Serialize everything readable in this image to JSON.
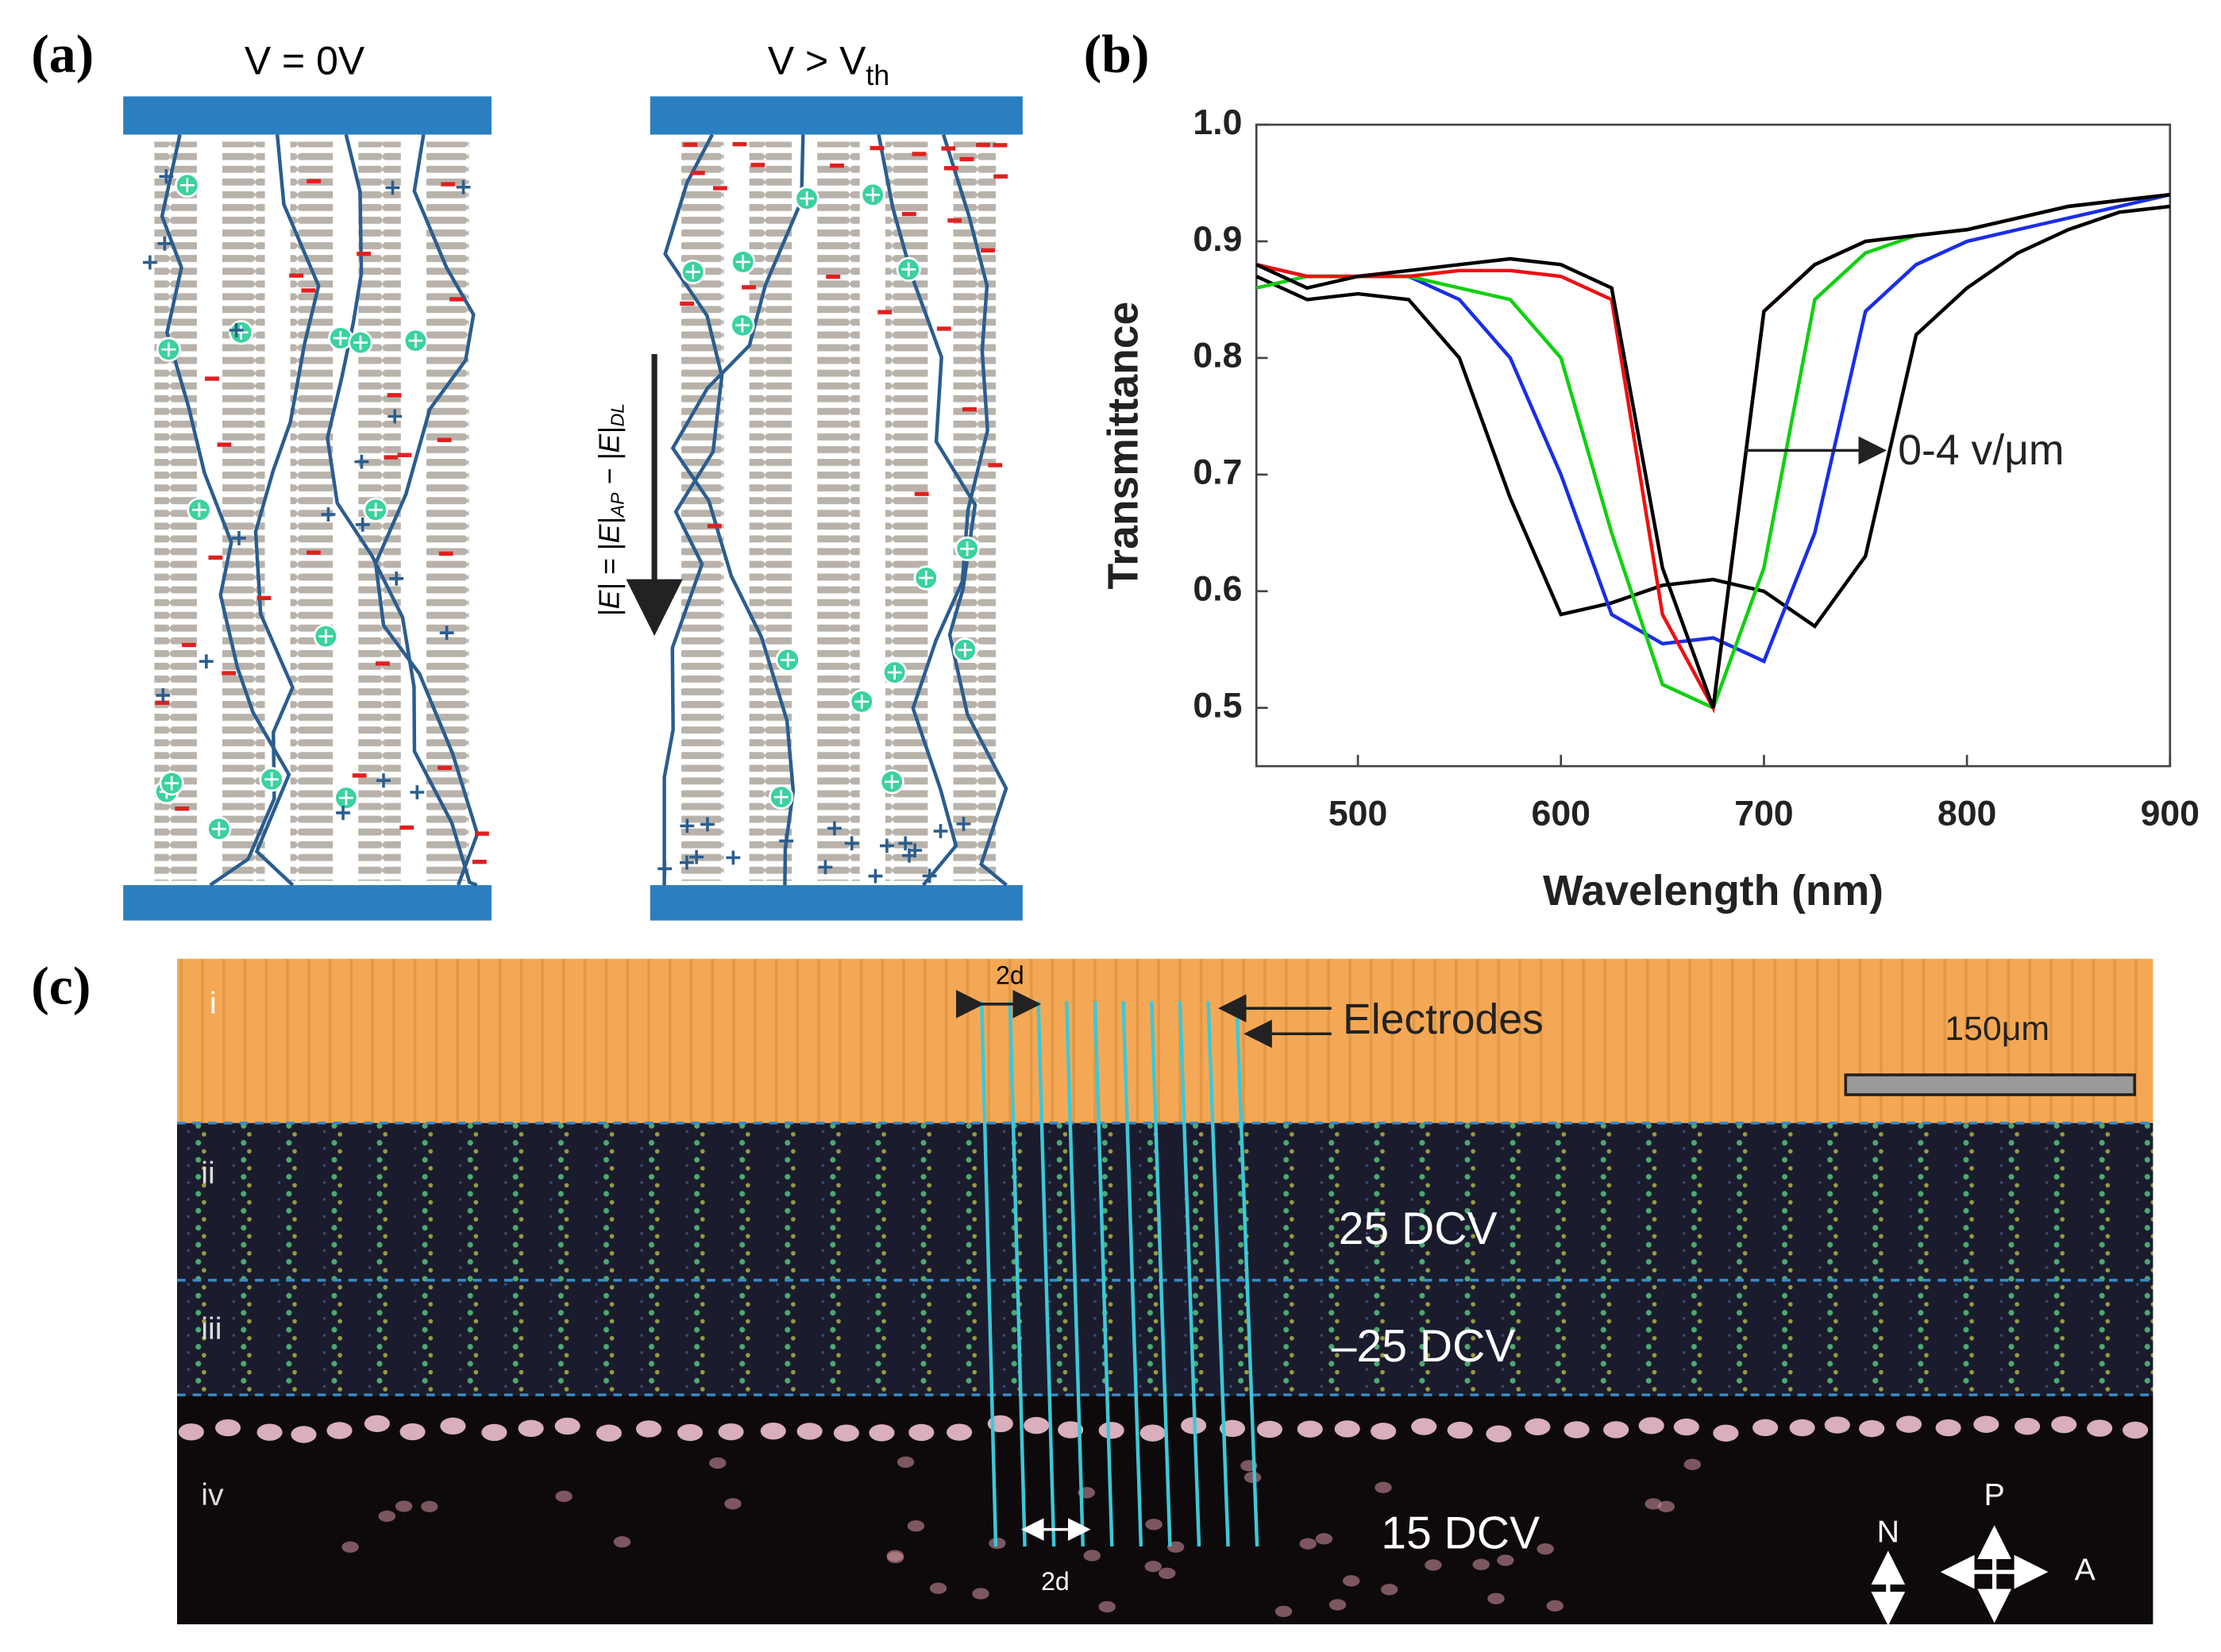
{
  "panels": {
    "a": {
      "label": "(a)",
      "left_title": "V = 0V",
      "right_title": "V > V",
      "right_title_sub": "th",
      "field_label": [
        "|E| = |E|",
        "AP",
        " − |E|",
        "DL"
      ]
    },
    "b": {
      "label": "(b)"
    },
    "c": {
      "label": "(c)",
      "rows": [
        "i",
        "ii",
        "iii",
        "iv"
      ],
      "spacing_top": "2d",
      "spacing_bottom": "2d",
      "electrodes": "Electrodes",
      "scale_bar": "150μm",
      "voltages": [
        "25 DCV",
        "–25 DCV",
        "15 DCV"
      ],
      "compass": [
        "N",
        "P",
        "A"
      ]
    }
  },
  "chart_data": {
    "type": "line",
    "xlabel": "Wavelength (nm)",
    "ylabel": "Transmittance",
    "annotation": "0-4 v/μm",
    "x": [
      450,
      475,
      500,
      525,
      550,
      575,
      600,
      625,
      650,
      675,
      700,
      725,
      750,
      775,
      800,
      825,
      850,
      875,
      900
    ],
    "series": [
      {
        "color": "#000000",
        "values": [
          0.87,
          0.85,
          0.855,
          0.85,
          0.8,
          0.68,
          0.58,
          0.59,
          0.605,
          0.61,
          0.6,
          0.57,
          0.63,
          0.82,
          0.86,
          0.89,
          0.91,
          0.925,
          0.93
        ]
      },
      {
        "color": "#1a2ee6",
        "values": [
          0.88,
          0.87,
          0.87,
          0.87,
          0.85,
          0.8,
          0.7,
          0.58,
          0.555,
          0.56,
          0.54,
          0.65,
          0.84,
          0.88,
          0.9,
          0.91,
          0.92,
          0.93,
          0.94
        ]
      },
      {
        "color": "#10d010",
        "values": [
          0.86,
          0.87,
          0.87,
          0.87,
          0.86,
          0.85,
          0.8,
          0.65,
          0.52,
          0.5,
          0.62,
          0.85,
          0.89,
          0.905,
          0.91,
          0.92,
          0.93,
          0.935,
          0.94
        ]
      },
      {
        "color": "#ee1010",
        "values": [
          0.88,
          0.87,
          0.87,
          0.87,
          0.875,
          0.875,
          0.87,
          0.85,
          0.58,
          0.5,
          0.84,
          0.88,
          0.9,
          0.905,
          0.91,
          0.92,
          0.93,
          0.935,
          0.94
        ]
      },
      {
        "color": "#000000",
        "values": [
          0.88,
          0.86,
          0.87,
          0.875,
          0.88,
          0.885,
          0.88,
          0.86,
          0.62,
          0.5,
          0.84,
          0.88,
          0.9,
          0.905,
          0.91,
          0.92,
          0.93,
          0.935,
          0.94
        ]
      }
    ],
    "xlim": [
      450,
      900
    ],
    "ylim": [
      0.45,
      1.0
    ],
    "xticks": [
      500,
      600,
      700,
      800,
      900
    ],
    "yticks": [
      0.5,
      0.6,
      0.7,
      0.8,
      0.9,
      {
        "value": 1,
        "label": "1.0"
      }
    ],
    "grid": false
  }
}
